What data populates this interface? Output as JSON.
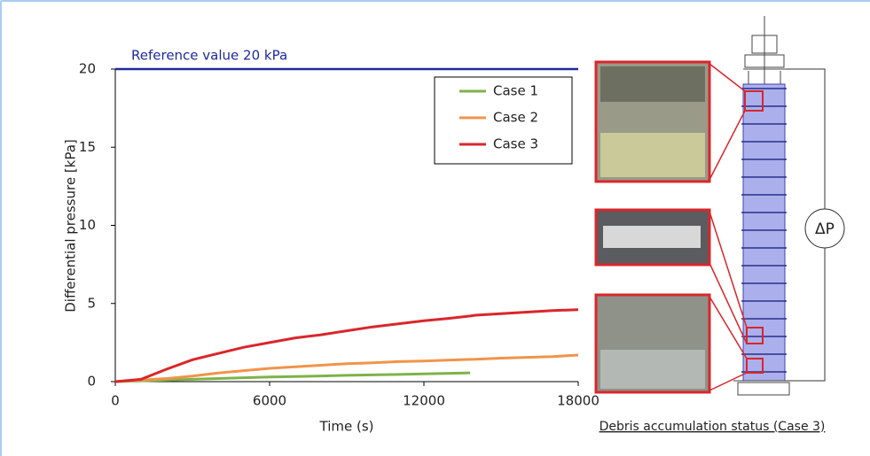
{
  "chart_data": {
    "type": "line",
    "xlabel": "Time (s)",
    "ylabel": "Differential pressure [kPa]",
    "x": [
      0,
      1000,
      2000,
      3000,
      4000,
      5000,
      6000,
      7000,
      8000,
      9000,
      10000,
      11000,
      12000,
      13000,
      13800,
      14000,
      15000,
      16000,
      17000,
      18000
    ],
    "series": [
      {
        "name": "Case 1",
        "color": "#7fb24a",
        "values": [
          0,
          0.05,
          0.1,
          0.15,
          0.2,
          0.25,
          0.3,
          0.33,
          0.36,
          0.4,
          0.43,
          0.46,
          0.5,
          0.53,
          0.56,
          null,
          null,
          null,
          null,
          null
        ]
      },
      {
        "name": "Case 2",
        "color": "#f0944a",
        "values": [
          0,
          0.1,
          0.2,
          0.35,
          0.55,
          0.7,
          0.85,
          0.95,
          1.05,
          1.15,
          1.2,
          1.28,
          1.32,
          1.38,
          1.42,
          1.43,
          1.5,
          1.55,
          1.6,
          1.7
        ]
      },
      {
        "name": "Case 3",
        "color": "#d9262b",
        "values": [
          0,
          0.15,
          0.8,
          1.4,
          1.8,
          2.2,
          2.5,
          2.8,
          3.0,
          3.25,
          3.5,
          3.7,
          3.9,
          4.05,
          4.2,
          4.25,
          4.35,
          4.45,
          4.55,
          4.6
        ]
      }
    ],
    "reference": {
      "label": "Reference value 20 kPa",
      "value": 20,
      "color": "#1f2a9b"
    },
    "xlim": [
      0,
      18000
    ],
    "ylim": [
      0,
      20
    ],
    "xticks": [
      0,
      6000,
      12000,
      18000
    ],
    "yticks": [
      0,
      5,
      10,
      15,
      20
    ],
    "grid": false,
    "legend": "upper right"
  },
  "diagram": {
    "delta_label": "ΔP",
    "caption": "Debris accumulation status (Case 3)"
  }
}
